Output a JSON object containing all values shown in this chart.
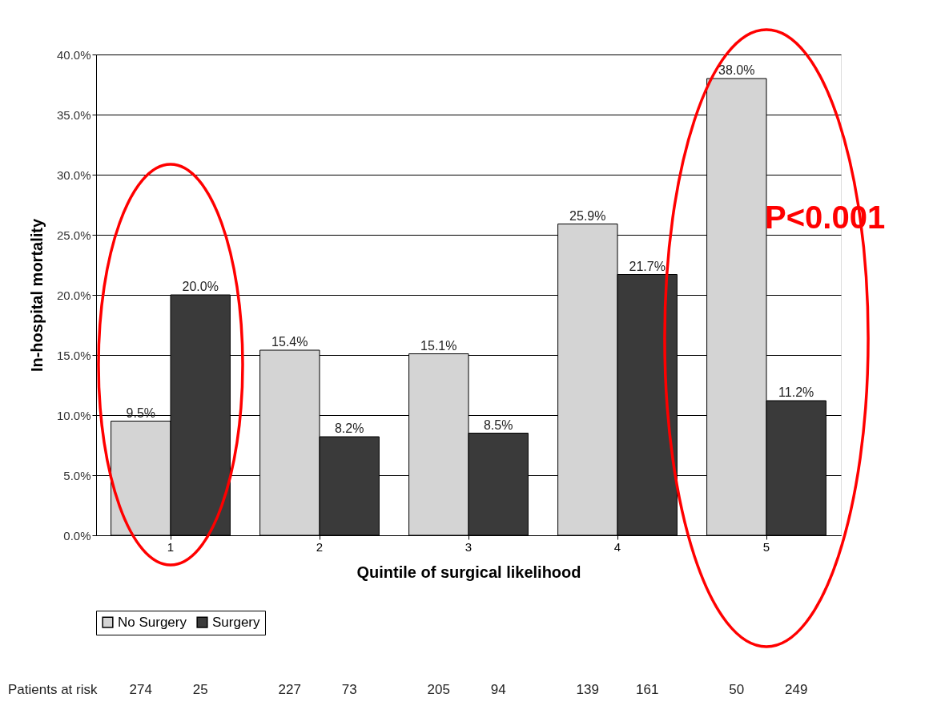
{
  "chart_data": {
    "type": "bar",
    "xlabel": "Quintile of surgical likelihood",
    "ylabel": "In-hospital mortality",
    "categories": [
      "1",
      "2",
      "3",
      "4",
      "5"
    ],
    "series": [
      {
        "name": "No Surgery",
        "color": "#d4d4d4",
        "values": [
          9.5,
          15.4,
          15.1,
          25.9,
          38.0
        ],
        "value_labels": [
          "9.5%",
          "15.4%",
          "15.1%",
          "25.9%",
          "38.0%"
        ]
      },
      {
        "name": "Surgery",
        "color": "#3a3a3a",
        "values": [
          20.0,
          8.2,
          8.5,
          21.7,
          11.2
        ],
        "value_labels": [
          "20.0%",
          "8.2%",
          "8.5%",
          "21.7%",
          "11.2%"
        ]
      }
    ],
    "ylim": [
      0,
      40
    ],
    "yticks": [
      {
        "value": 0,
        "label": "0.0%"
      },
      {
        "value": 5,
        "label": "5.0%"
      },
      {
        "value": 10,
        "label": "10.0%"
      },
      {
        "value": 15,
        "label": "15.0%"
      },
      {
        "value": 20,
        "label": "20.0%"
      },
      {
        "value": 25,
        "label": "25.0%"
      },
      {
        "value": 30,
        "label": "30.0%"
      },
      {
        "value": 35,
        "label": "35.0%"
      },
      {
        "value": 40,
        "label": "40.0%"
      }
    ],
    "grid": "y",
    "legend": "bottom",
    "annotations": [
      "P<0.001",
      "Patients at risk",
      "274",
      "25",
      "227",
      "73",
      "205",
      "94",
      "139",
      "161",
      "50",
      "249"
    ]
  }
}
